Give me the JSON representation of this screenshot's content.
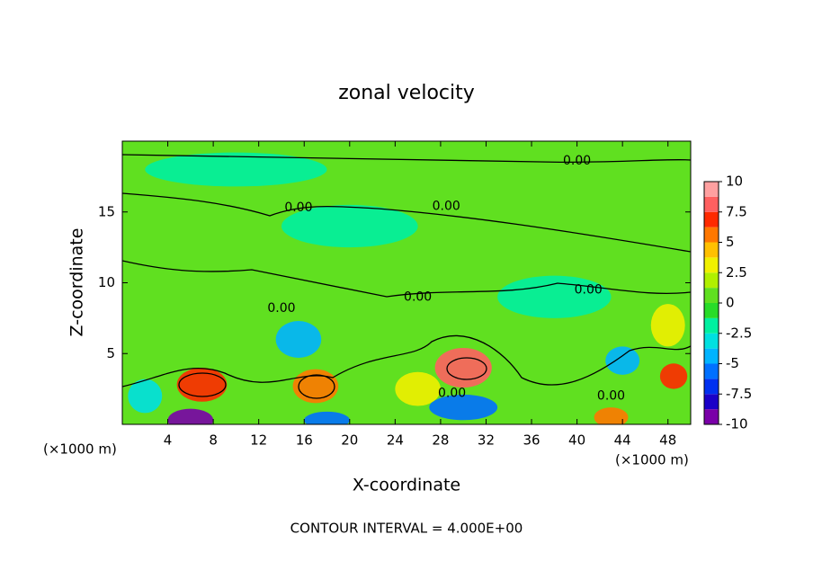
{
  "chart_data": {
    "type": "contour",
    "title": "zonal velocity",
    "x_label": "X-coordinate",
    "y_label": "Z-coordinate",
    "x_unit_left": "(×1000 m)",
    "x_unit_right": "(×1000 m)",
    "footnote": "CONTOUR INTERVAL = 4.000E+00",
    "xlim": [
      0,
      50
    ],
    "xticks": [
      4,
      8,
      12,
      16,
      20,
      24,
      28,
      32,
      36,
      40,
      44,
      48
    ],
    "ylim": [
      0,
      20
    ],
    "yticks": [
      5,
      10,
      15
    ],
    "clim": [
      -10,
      10
    ],
    "cticks": [
      -10,
      -7.5,
      -5,
      -2.5,
      0,
      2.5,
      5,
      7.5,
      10
    ],
    "colorscale": [
      "#7a00a8",
      "#1a00c8",
      "#0030f0",
      "#0070ff",
      "#00b4ff",
      "#00e0e0",
      "#00f0a0",
      "#28dc28",
      "#60e020",
      "#b0f000",
      "#f0f000",
      "#ffc000",
      "#ff7800",
      "#ff2a00",
      "#ff6060",
      "#ffa0a0"
    ],
    "background_value": 0,
    "features": [
      {
        "x": 7,
        "z": 2.8,
        "rx": 2.2,
        "rz": 1.2,
        "value": 7
      },
      {
        "x": 6,
        "z": 0.3,
        "rx": 2,
        "rz": 0.8,
        "value": -9
      },
      {
        "x": 17,
        "z": 2.7,
        "rx": 2,
        "rz": 1.2,
        "value": 6
      },
      {
        "x": 15.5,
        "z": 6,
        "rx": 2,
        "rz": 1.3,
        "value": -4
      },
      {
        "x": 30,
        "z": 4,
        "rx": 2.5,
        "rz": 1.4,
        "value": 8.5
      },
      {
        "x": 30,
        "z": 1.2,
        "rx": 3,
        "rz": 0.9,
        "value": -6
      },
      {
        "x": 18,
        "z": 0.3,
        "rx": 2,
        "rz": 0.6,
        "value": -6
      },
      {
        "x": 43,
        "z": 0.5,
        "rx": 1.5,
        "rz": 0.7,
        "value": 6
      },
      {
        "x": 48.5,
        "z": 3.4,
        "rx": 1.2,
        "rz": 0.9,
        "value": 7
      },
      {
        "x": 44,
        "z": 4.5,
        "rx": 1.5,
        "rz": 1,
        "value": -4
      },
      {
        "x": 26,
        "z": 2.5,
        "rx": 2,
        "rz": 1.2,
        "value": 3
      },
      {
        "x": 48,
        "z": 7,
        "rx": 1.5,
        "rz": 1.5,
        "value": 3
      },
      {
        "x": 20,
        "z": 14,
        "rx": 6,
        "rz": 1.5,
        "value": -2.5
      },
      {
        "x": 10,
        "z": 18,
        "rx": 8,
        "rz": 1.2,
        "value": -1.5
      },
      {
        "x": 2,
        "z": 2,
        "rx": 1.5,
        "rz": 1.2,
        "value": -3
      },
      {
        "x": 38,
        "z": 9,
        "rx": 5,
        "rz": 1.5,
        "value": -2.5
      }
    ],
    "contour_labels": [
      {
        "x": 40,
        "z": 18.6,
        "value": 0,
        "label": "0.00"
      },
      {
        "x": 15.5,
        "z": 15.3,
        "value": 0,
        "label": "0.00"
      },
      {
        "x": 28.5,
        "z": 15.4,
        "value": 0,
        "label": "0.00"
      },
      {
        "x": 26,
        "z": 9,
        "value": 0,
        "label": "0.00"
      },
      {
        "x": 14,
        "z": 8.2,
        "value": 0,
        "label": "0.00"
      },
      {
        "x": 41,
        "z": 9.5,
        "value": 0,
        "label": "0.00"
      },
      {
        "x": 29,
        "z": 2.2,
        "value": 0,
        "label": "0.00"
      },
      {
        "x": 43,
        "z": 2,
        "value": 0,
        "label": "0.00"
      }
    ]
  }
}
